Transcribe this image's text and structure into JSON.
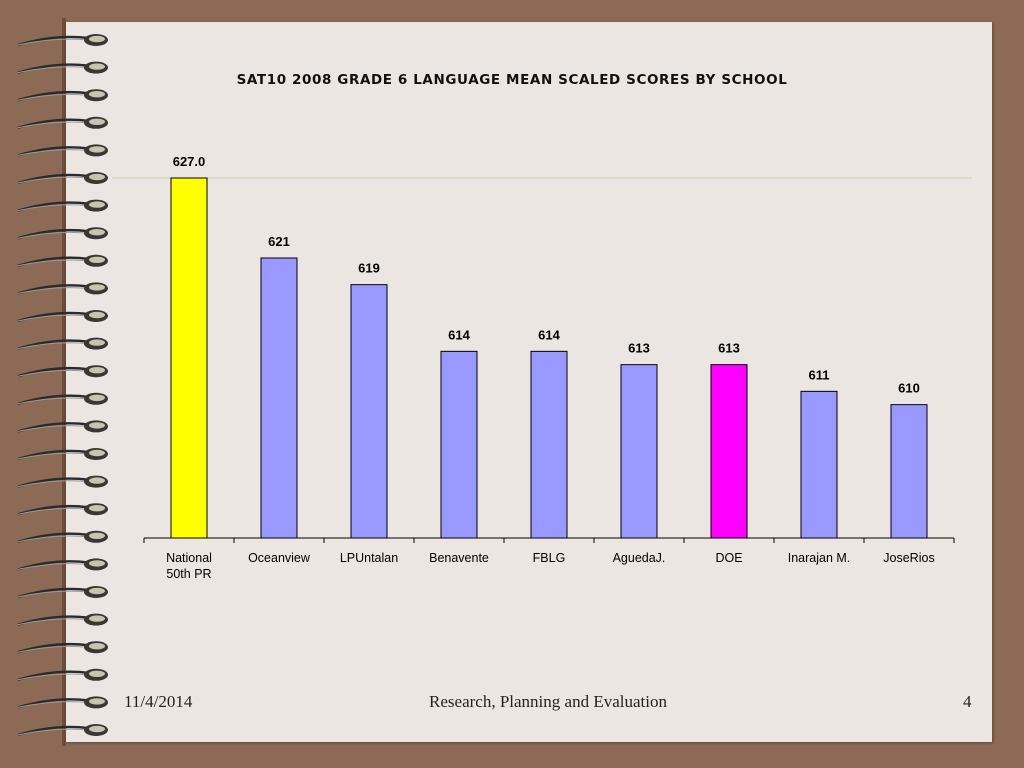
{
  "slide": {
    "date": "11/4/2014",
    "footer_text": "Research, Planning and Evaluation",
    "page_number": "4"
  },
  "colors": {
    "background": "#8d6a55",
    "paper": "#ece6e3",
    "bar_default": "#9999ff",
    "bar_national": "#ffff00",
    "bar_doe": "#ff00ff"
  },
  "chart_data": {
    "type": "bar",
    "title": "SAT10 2008 GRADE 6 LANGUAGE MEAN SCALED SCORES BY SCHOOL",
    "categories": [
      "National 50th PR",
      "Oceanview",
      "LPUntalan",
      "Benavente",
      "FBLG",
      "AguedaJ.",
      "DOE",
      "Inarajan M.",
      "JoseRios"
    ],
    "values": [
      627.0,
      621,
      619,
      614,
      614,
      613,
      613,
      611,
      610
    ],
    "data_labels": [
      "627.0",
      "621",
      "619",
      "614",
      "614",
      "613",
      "613",
      "611",
      "610"
    ],
    "bar_colors": [
      "#ffff00",
      "#9999ff",
      "#9999ff",
      "#9999ff",
      "#9999ff",
      "#9999ff",
      "#ff00ff",
      "#9999ff",
      "#9999ff"
    ],
    "reference_line": 627.0,
    "ylim": [
      600,
      627.0
    ],
    "xlabel": "",
    "ylabel": "",
    "grid": false,
    "legend": "none"
  }
}
